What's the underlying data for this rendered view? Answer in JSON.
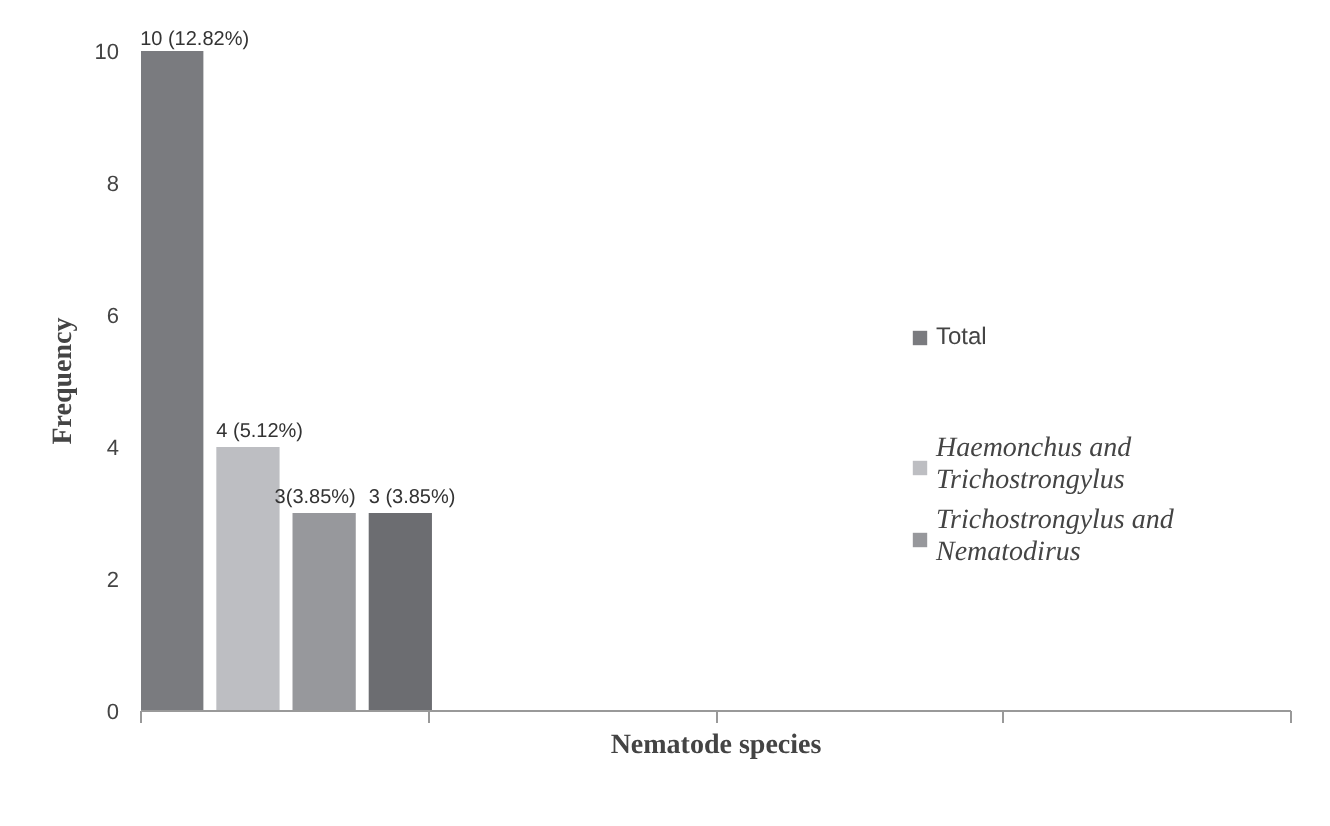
{
  "chart_data": {
    "type": "bar",
    "xlabel": "Nematode species",
    "ylabel": "Frequency",
    "categories": [
      null,
      null,
      null,
      null
    ],
    "series": [
      {
        "name": "Total",
        "color": "#7a7b7f",
        "values": [
          10,
          null,
          null,
          null
        ],
        "value_labels": [
          "10 (12.82%)",
          null,
          null,
          null
        ]
      },
      {
        "name": "Haemonchus and Trichostrongylus",
        "color": "#bdbec2",
        "values": [
          4,
          null,
          null,
          null
        ],
        "value_labels": [
          "4 (5.12%)",
          null,
          null,
          null
        ]
      },
      {
        "name": "Trichostrongylus and Nematodirus",
        "color": "#97989c",
        "values": [
          3,
          null,
          null,
          null
        ],
        "value_labels": [
          "3(3.85%)",
          null,
          null,
          null
        ]
      },
      {
        "color": "#6c6d71",
        "values": [
          3,
          null,
          null,
          null
        ],
        "value_labels": [
          "3 (3.85%)",
          null,
          null,
          null
        ]
      }
    ],
    "ylim": [
      0,
      10
    ],
    "yticks": [
      0,
      2,
      4,
      6,
      8,
      10
    ],
    "grid": false,
    "legend": "right"
  }
}
